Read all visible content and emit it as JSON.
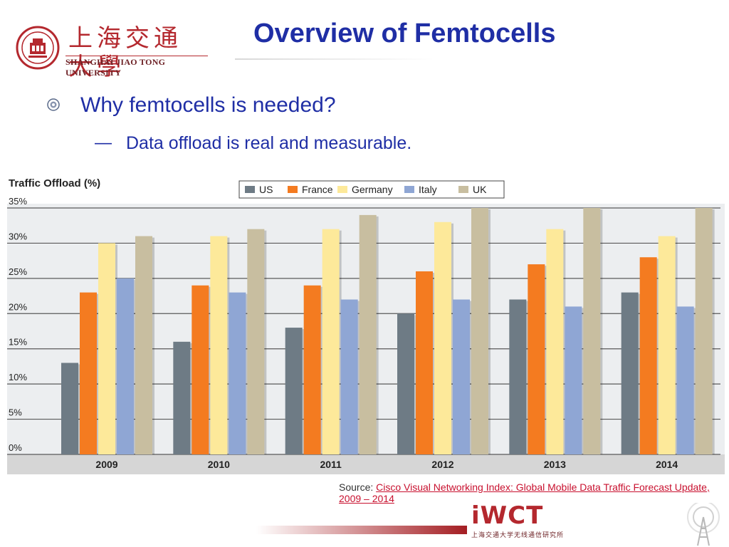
{
  "header": {
    "logo_cn": "上海交通大學",
    "logo_en": "SHANGHAI JIAO TONG UNIVERSITY",
    "title": "Overview of Femtocells"
  },
  "bullets": {
    "level1": "Why femtocells is needed?",
    "dash": "—",
    "level2": "Data offload is real and measurable."
  },
  "chart_data": {
    "type": "bar",
    "title": "Traffic Offload (%)",
    "categories": [
      "2009",
      "2010",
      "2011",
      "2012",
      "2013",
      "2014"
    ],
    "series": [
      {
        "name": "US",
        "color": "#6e7b85",
        "values": [
          13,
          16,
          18,
          20,
          22,
          23
        ]
      },
      {
        "name": "France",
        "color": "#f47b20",
        "values": [
          23,
          24,
          24,
          26,
          27,
          28
        ]
      },
      {
        "name": "Germany",
        "color": "#fde99a",
        "values": [
          30,
          31,
          32,
          33,
          32,
          31
        ]
      },
      {
        "name": "Italy",
        "color": "#8fa6d4",
        "values": [
          25,
          23,
          22,
          22,
          21,
          21
        ]
      },
      {
        "name": "UK",
        "color": "#c8bea0",
        "values": [
          31,
          32,
          34,
          35,
          35,
          35
        ]
      }
    ],
    "yticks": [
      "0%",
      "5%",
      "10%",
      "15%",
      "20%",
      "25%",
      "30%",
      "35%"
    ],
    "ylim": [
      0,
      35
    ],
    "grid": true,
    "legend": "top-center"
  },
  "source": {
    "label": "Source: ",
    "link": "Cisco Visual Networking Index: Global Mobile Data Traffic Forecast Update, 2009 – 2014"
  },
  "footer": {
    "brand": "iWCT",
    "brand_cn": "上海交通大学无线通信研究所"
  }
}
